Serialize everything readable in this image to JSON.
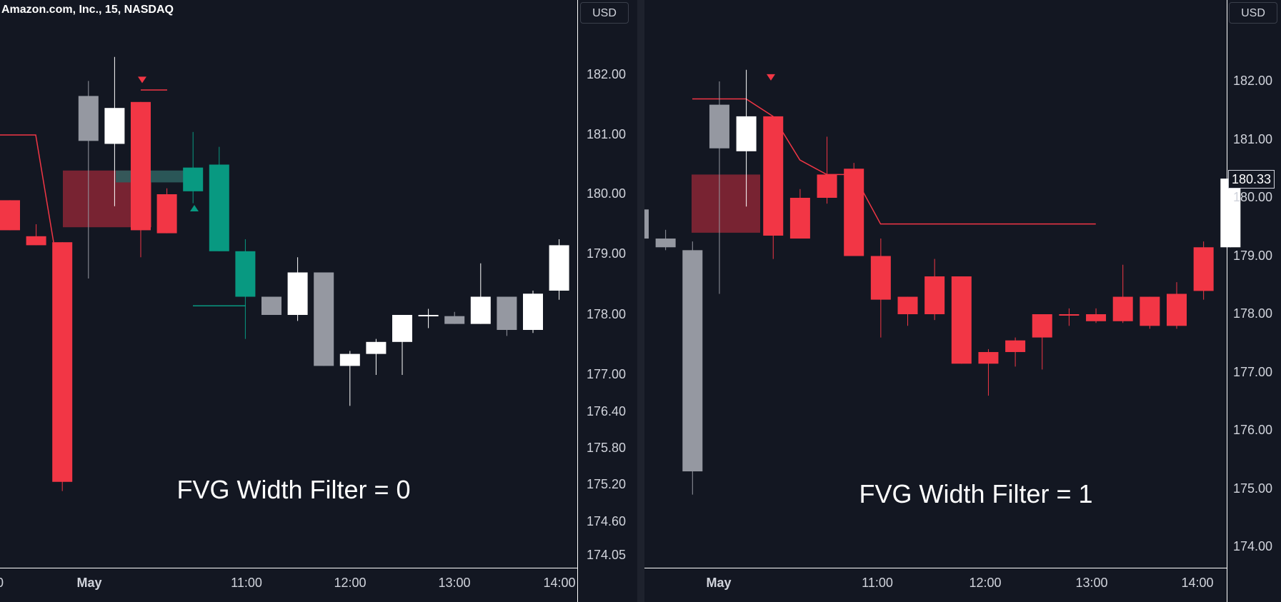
{
  "header": {
    "symbol": "Amazon.com, Inc., 15, NASDAQ"
  },
  "colors": {
    "background": "#131722",
    "bear": "#f23645",
    "bull": "#ffffff",
    "gray": "#9598a1",
    "teal": "#089981",
    "zone": "#8b2635",
    "text": "#d1d4dc"
  },
  "chart_data": [
    {
      "type": "candlestick",
      "title": "FVG Width Filter = 0",
      "currency": "USD",
      "y_ticks": [
        "182.00",
        "181.00",
        "180.00",
        "179.00",
        "178.00",
        "177.00",
        "176.40",
        "175.80",
        "175.20",
        "174.60",
        "174.05"
      ],
      "x_ticks": [
        {
          "label": "0",
          "bold": false
        },
        {
          "label": "May",
          "bold": true
        },
        {
          "label": "11:00",
          "bold": false
        },
        {
          "label": "12:00",
          "bold": false
        },
        {
          "label": "13:00",
          "bold": false
        },
        {
          "label": "14:00",
          "bold": false
        }
      ],
      "candles": [
        {
          "o": 179.9,
          "h": 179.9,
          "l": 179.4,
          "c": 179.4,
          "color": "red"
        },
        {
          "o": 179.3,
          "h": 179.5,
          "l": 179.15,
          "c": 179.15,
          "color": "red"
        },
        {
          "o": 179.2,
          "h": 179.2,
          "l": 175.1,
          "c": 175.25,
          "color": "red"
        },
        {
          "o": 180.9,
          "h": 181.9,
          "l": 178.6,
          "c": 181.65,
          "color": "gray"
        },
        {
          "o": 180.85,
          "h": 182.3,
          "l": 179.8,
          "c": 181.45,
          "color": "white"
        },
        {
          "o": 181.55,
          "h": 181.55,
          "l": 178.95,
          "c": 179.4,
          "color": "red"
        },
        {
          "o": 180.0,
          "h": 180.1,
          "l": 179.35,
          "c": 179.35,
          "color": "red"
        },
        {
          "o": 180.05,
          "h": 181.05,
          "l": 179.85,
          "c": 180.45,
          "color": "teal"
        },
        {
          "o": 180.5,
          "h": 180.8,
          "l": 179.05,
          "c": 179.05,
          "color": "teal"
        },
        {
          "o": 179.05,
          "h": 179.25,
          "l": 177.6,
          "c": 178.3,
          "color": "teal"
        },
        {
          "o": 178.3,
          "h": 178.3,
          "l": 178.0,
          "c": 178.0,
          "color": "gray"
        },
        {
          "o": 178.0,
          "h": 178.95,
          "l": 177.9,
          "c": 178.7,
          "color": "white"
        },
        {
          "o": 178.7,
          "h": 178.7,
          "l": 177.15,
          "c": 177.15,
          "color": "gray"
        },
        {
          "o": 177.15,
          "h": 177.4,
          "l": 176.5,
          "c": 177.35,
          "color": "white"
        },
        {
          "o": 177.35,
          "h": 177.6,
          "l": 177.0,
          "c": 177.55,
          "color": "white"
        },
        {
          "o": 177.55,
          "h": 178.0,
          "l": 177.0,
          "c": 178.0,
          "color": "white"
        },
        {
          "o": 177.98,
          "h": 178.1,
          "l": 177.78,
          "c": 178.0,
          "color": "white"
        },
        {
          "o": 177.85,
          "h": 178.05,
          "l": 177.85,
          "c": 177.98,
          "color": "gray"
        },
        {
          "o": 177.85,
          "h": 178.85,
          "l": 177.85,
          "c": 178.3,
          "color": "white"
        },
        {
          "o": 177.75,
          "h": 178.3,
          "l": 177.65,
          "c": 178.3,
          "color": "gray"
        },
        {
          "o": 177.75,
          "h": 178.4,
          "l": 177.7,
          "c": 178.35,
          "color": "white"
        },
        {
          "o": 178.4,
          "h": 179.25,
          "l": 178.25,
          "c": 179.15,
          "color": "white"
        }
      ],
      "fvg_zone": {
        "top": 180.4,
        "bottom": 179.45,
        "gray_band_top": 180.4,
        "gray_band_bottom": 180.2
      },
      "bear_line": [
        181.0,
        181.0,
        181.0,
        179.2
      ],
      "markers": [
        {
          "type": "down",
          "price": 181.9,
          "color": "red"
        },
        {
          "type": "up",
          "price": 179.75,
          "color": "teal"
        }
      ],
      "level_lines": [
        {
          "price": 181.75,
          "color": "red"
        },
        {
          "price": 178.15,
          "color": "teal"
        }
      ]
    },
    {
      "type": "candlestick",
      "title": "FVG Width Filter = 1",
      "currency": "USD",
      "last_price": "180.33",
      "y_ticks": [
        "182.00",
        "181.00",
        "180.00",
        "179.00",
        "178.00",
        "177.00",
        "176.00",
        "175.00",
        "174.00"
      ],
      "x_ticks": [
        {
          "label": "May",
          "bold": true
        },
        {
          "label": "11:00",
          "bold": false
        },
        {
          "label": "12:00",
          "bold": false
        },
        {
          "label": "13:00",
          "bold": false
        },
        {
          "label": "14:00",
          "bold": false
        }
      ],
      "candles": [
        {
          "o": 179.3,
          "h": 179.9,
          "l": 179.3,
          "c": 179.8,
          "color": "gray"
        },
        {
          "o": 179.3,
          "h": 179.45,
          "l": 179.1,
          "c": 179.15,
          "color": "gray"
        },
        {
          "o": 175.3,
          "h": 179.25,
          "l": 174.9,
          "c": 179.1,
          "color": "gray"
        },
        {
          "o": 180.85,
          "h": 182.0,
          "l": 178.35,
          "c": 181.6,
          "color": "gray"
        },
        {
          "o": 180.8,
          "h": 182.2,
          "l": 179.85,
          "c": 181.4,
          "color": "white"
        },
        {
          "o": 181.4,
          "h": 181.4,
          "l": 178.95,
          "c": 179.35,
          "color": "red"
        },
        {
          "o": 180.0,
          "h": 180.15,
          "l": 179.3,
          "c": 179.3,
          "color": "red"
        },
        {
          "o": 180.4,
          "h": 181.05,
          "l": 179.9,
          "c": 180.0,
          "color": "red"
        },
        {
          "o": 180.5,
          "h": 180.6,
          "l": 179.0,
          "c": 179.0,
          "color": "red"
        },
        {
          "o": 179.0,
          "h": 179.3,
          "l": 177.6,
          "c": 178.25,
          "color": "red"
        },
        {
          "o": 178.3,
          "h": 178.3,
          "l": 177.8,
          "c": 178.0,
          "color": "red"
        },
        {
          "o": 178.65,
          "h": 178.95,
          "l": 177.9,
          "c": 178.0,
          "color": "red"
        },
        {
          "o": 178.65,
          "h": 178.65,
          "l": 177.15,
          "c": 177.15,
          "color": "red"
        },
        {
          "o": 177.35,
          "h": 177.4,
          "l": 176.6,
          "c": 177.15,
          "color": "red"
        },
        {
          "o": 177.55,
          "h": 177.6,
          "l": 177.1,
          "c": 177.35,
          "color": "red"
        },
        {
          "o": 178.0,
          "h": 178.0,
          "l": 177.05,
          "c": 177.6,
          "color": "red"
        },
        {
          "o": 178.0,
          "h": 178.1,
          "l": 177.8,
          "c": 178.0,
          "color": "red"
        },
        {
          "o": 178.0,
          "h": 178.1,
          "l": 177.85,
          "c": 177.88,
          "color": "red"
        },
        {
          "o": 178.3,
          "h": 178.85,
          "l": 177.85,
          "c": 177.88,
          "color": "red"
        },
        {
          "o": 178.3,
          "h": 178.3,
          "l": 177.75,
          "c": 177.8,
          "color": "red"
        },
        {
          "o": 178.35,
          "h": 178.55,
          "l": 177.75,
          "c": 177.8,
          "color": "red"
        },
        {
          "o": 179.15,
          "h": 179.25,
          "l": 178.25,
          "c": 178.4,
          "color": "red"
        },
        {
          "o": 179.15,
          "h": 180.45,
          "l": 179.15,
          "c": 180.33,
          "color": "white"
        }
      ],
      "fvg_zone": {
        "top": 180.4,
        "bottom": 179.4
      },
      "bear_line": [
        181.7,
        181.7,
        181.7,
        181.4,
        180.65,
        180.4,
        180.4,
        179.55,
        179.55,
        179.55,
        179.55,
        179.55,
        179.55,
        179.55,
        179.55,
        179.55
      ],
      "markers": [
        {
          "type": "down",
          "price": 182.05,
          "color": "red"
        }
      ]
    }
  ]
}
